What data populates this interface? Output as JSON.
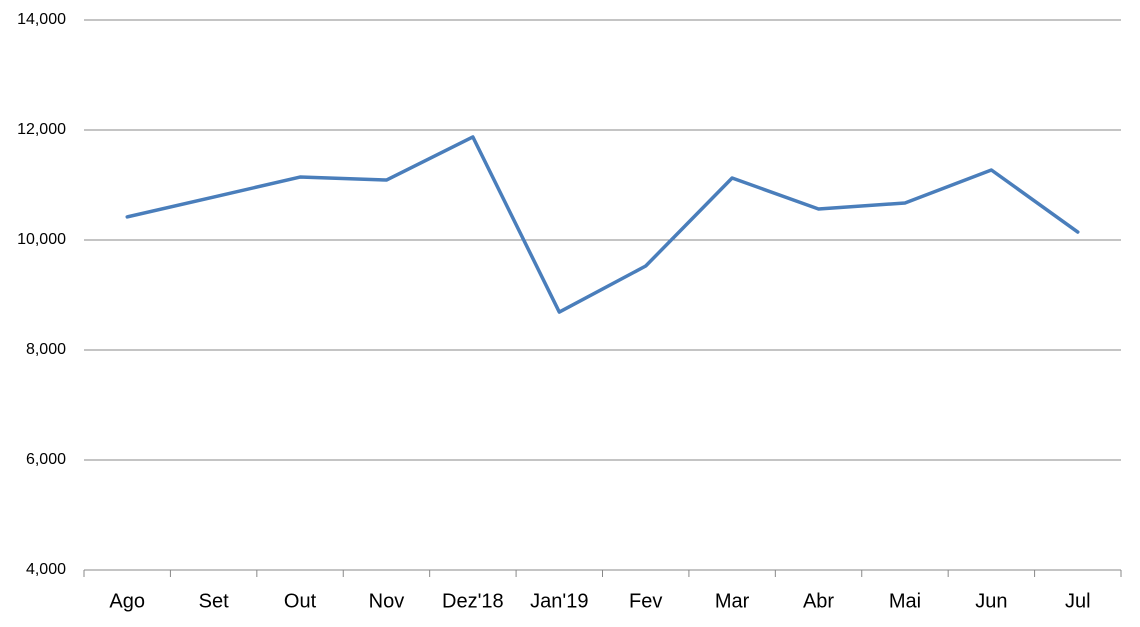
{
  "chart_data": {
    "type": "line",
    "categories": [
      "Ago",
      "Set",
      "Out",
      "Nov",
      "Dez'18",
      "Jan'19",
      "Fev",
      "Mar",
      "Abr",
      "Mai",
      "Jun",
      "Jul"
    ],
    "series": [
      {
        "color": "#4a7ebb",
        "values": [
          10420,
          10780,
          11145,
          11090,
          11873,
          8690,
          9527,
          11127,
          10564,
          10673,
          11273,
          10145
        ]
      }
    ],
    "ylim": [
      4000,
      14000
    ],
    "yticks": [
      {
        "value": 4000,
        "label": "4,000"
      },
      {
        "value": 6000,
        "label": "6,000"
      },
      {
        "value": 8000,
        "label": "8,000"
      },
      {
        "value": 10000,
        "label": "10,000"
      },
      {
        "value": 12000,
        "label": "12,000"
      },
      {
        "value": 14000,
        "label": "14,000"
      }
    ],
    "grid": true
  }
}
